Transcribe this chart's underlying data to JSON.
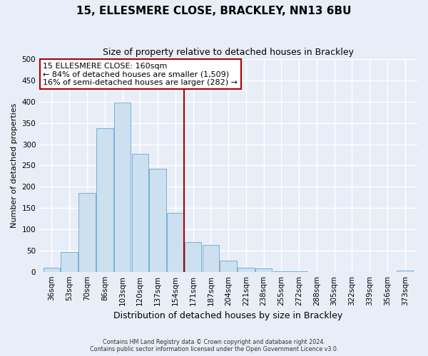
{
  "title": "15, ELLESMERE CLOSE, BRACKLEY, NN13 6BU",
  "subtitle": "Size of property relative to detached houses in Brackley",
  "xlabel": "Distribution of detached houses by size in Brackley",
  "ylabel": "Number of detached properties",
  "footnote1": "Contains HM Land Registry data © Crown copyright and database right 2024.",
  "footnote2": "Contains public sector information licensed under the Open Government Licence v3.0.",
  "bin_labels": [
    "36sqm",
    "53sqm",
    "70sqm",
    "86sqm",
    "103sqm",
    "120sqm",
    "137sqm",
    "154sqm",
    "171sqm",
    "187sqm",
    "204sqm",
    "221sqm",
    "238sqm",
    "255sqm",
    "272sqm",
    "288sqm",
    "305sqm",
    "322sqm",
    "339sqm",
    "356sqm",
    "373sqm"
  ],
  "bar_heights": [
    10,
    46,
    185,
    338,
    398,
    278,
    242,
    138,
    70,
    63,
    26,
    10,
    7,
    1,
    1,
    0,
    0,
    0,
    0,
    0,
    2
  ],
  "bar_color": "#cce0f0",
  "bar_edge_color": "#7ab0d4",
  "vline_x": 7.5,
  "vline_color": "#aa0000",
  "annotation_title": "15 ELLESMERE CLOSE: 160sqm",
  "annotation_line1": "← 84% of detached houses are smaller (1,509)",
  "annotation_line2": "16% of semi-detached houses are larger (282) →",
  "annotation_box_facecolor": "#ffffff",
  "annotation_box_edgecolor": "#aa0000",
  "ylim": [
    0,
    500
  ],
  "yticks": [
    0,
    50,
    100,
    150,
    200,
    250,
    300,
    350,
    400,
    450,
    500
  ],
  "background_color": "#e8eef8",
  "grid_color": "#ffffff",
  "title_fontsize": 11,
  "subtitle_fontsize": 9,
  "ylabel_fontsize": 8,
  "xlabel_fontsize": 9,
  "tick_fontsize": 7.5,
  "footnote_fontsize": 5.8
}
